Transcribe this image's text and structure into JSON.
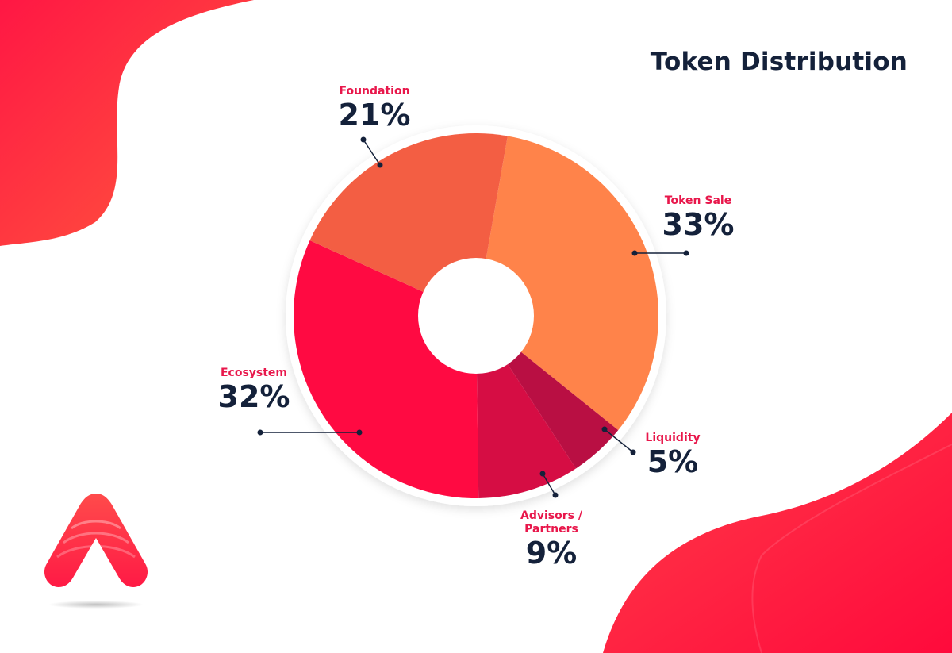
{
  "title": "Token Distribution",
  "colors": {
    "background": "#ffffff",
    "accent": "#ff1744",
    "title": "#14213a",
    "label": "#e8174b"
  },
  "chart_data": {
    "type": "pie",
    "donut": true,
    "title": "Token Distribution",
    "series": [
      {
        "name": "Token Sale",
        "value": 33,
        "label": "33%",
        "color": "#ff834a"
      },
      {
        "name": "Liquidity",
        "value": 5,
        "label": "5%",
        "color": "#b90f43"
      },
      {
        "name": "Advisors /\nPartners",
        "value": 9,
        "label": "9%",
        "color": "#d60d44"
      },
      {
        "name": "Ecosystem",
        "value": 32,
        "label": "32%",
        "color": "#ff0a42"
      },
      {
        "name": "Foundation",
        "value": 21,
        "label": "21%",
        "color": "#f35e43"
      }
    ]
  }
}
